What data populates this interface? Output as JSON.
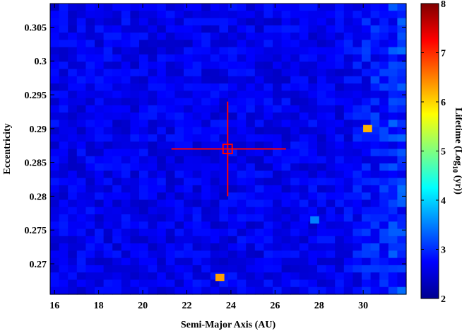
{
  "chart_data": {
    "type": "heatmap",
    "title": "",
    "xlabel": "Semi-Major Axis (AU)",
    "ylabel": "Eccentricity",
    "xlim": [
      15.8,
      31.95
    ],
    "ylim": [
      0.2655,
      0.3085
    ],
    "xticks": [
      16,
      18,
      20,
      22,
      24,
      26,
      28,
      30
    ],
    "xtick_labels": [
      "16",
      "18",
      "20",
      "22",
      "24",
      "26",
      "28",
      "30"
    ],
    "yticks": [
      0.27,
      0.275,
      0.28,
      0.285,
      0.29,
      0.295,
      0.3,
      0.305
    ],
    "ytick_labels": [
      "0.27",
      "0.275",
      "0.28",
      "0.285",
      "0.29",
      "0.295",
      "0.3",
      "0.305"
    ],
    "grid": false,
    "grid_size": [
      40,
      40
    ],
    "background_value_range": [
      2.4,
      2.9
    ],
    "background_value_range_right_edge": [
      2.6,
      3.4
    ],
    "colorbar": {
      "label_parts": [
        "Lifetime (Log",
        "10",
        " (yr))"
      ],
      "min": 2,
      "max": 8,
      "ticks": [
        2,
        3,
        4,
        5,
        6,
        7,
        8
      ],
      "tick_labels": [
        "2",
        "3",
        "4",
        "5",
        "6",
        "7",
        "8"
      ],
      "colormap": "jet"
    },
    "highlight_cells": [
      {
        "a": 30.2,
        "e": 0.29,
        "value": 6.2
      },
      {
        "a": 27.8,
        "e": 0.2765,
        "value": 3.5
      },
      {
        "a": 23.5,
        "e": 0.268,
        "value": 6.3
      }
    ],
    "nominal_point": {
      "a": 23.85,
      "e": 0.287,
      "a_range": [
        21.3,
        26.5
      ],
      "e_range": [
        0.28,
        0.294
      ],
      "color": "#ff0000"
    }
  }
}
